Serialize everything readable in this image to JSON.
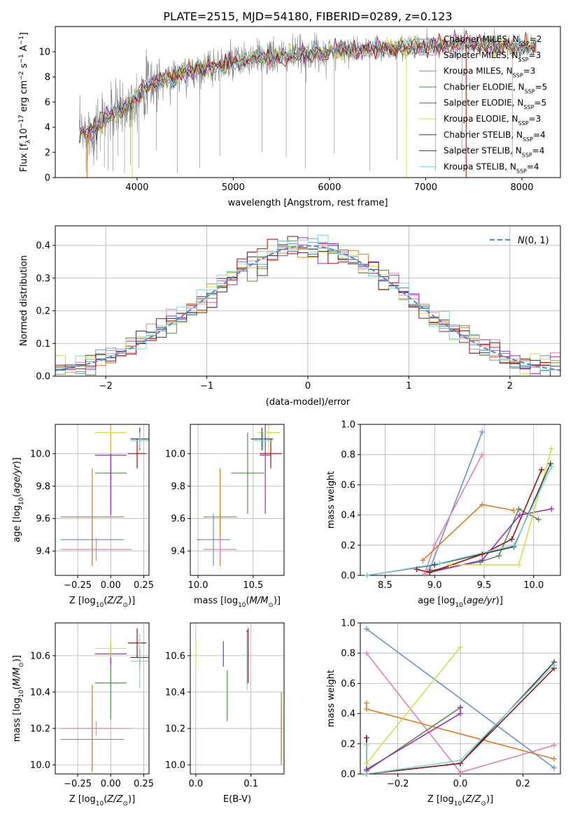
{
  "figure_title": "PLATE=2515, MJD=54180, FIBERID=0289, z=0.123",
  "colors": {
    "Chabrier MILES": "#6b8fd6",
    "Salpeter MILES": "#e27fb5",
    "Kroupa MILES": "#e07b20",
    "Chabrier ELODIE": "#5b8a55",
    "Salpeter ELODIE": "#9a2cc0",
    "Kroupa ELODIE": "#cfe24a",
    "Chabrier STELIB": "#3a3a3a",
    "Salpeter STELIB": "#a01010",
    "Kroupa STELIB": "#7fd8dc"
  },
  "chart_data": [
    {
      "id": "spectrum",
      "type": "line",
      "title": "PLATE=2515, MJD=54180, FIBERID=0289, z=0.123",
      "xlabel": "wavelength [Angstrom, rest frame]",
      "ylabel": "Flux [f_λ 10^-17 erg cm^-2 s^-1 A^-1]",
      "xlim": [
        3150,
        8400
      ],
      "ylim": [
        0,
        12
      ],
      "xticks": [
        4000,
        5000,
        6000,
        7000,
        8000
      ],
      "yticks": [
        0,
        2,
        4,
        6,
        8,
        10
      ],
      "legend_position": "top-right",
      "legend": [
        {
          "name": "Chabrier MILES",
          "nssp": "2"
        },
        {
          "name": "Salpeter MILES",
          "nssp": "3"
        },
        {
          "name": "Kroupa MILES",
          "nssp": "3"
        },
        {
          "name": "Chabrier ELODIE",
          "nssp": "5"
        },
        {
          "name": "Salpeter ELODIE",
          "nssp": "5"
        },
        {
          "name": "Kroupa ELODIE",
          "nssp": "3"
        },
        {
          "name": "Chabrier STELIB",
          "nssp": "4"
        },
        {
          "name": "Salpeter STELIB",
          "nssp": "4"
        },
        {
          "name": "Kroupa STELIB",
          "nssp": "4"
        }
      ],
      "continuum": [
        [
          3400,
          3.4
        ],
        [
          3550,
          3.9
        ],
        [
          3700,
          4.9
        ],
        [
          3850,
          5.4
        ],
        [
          3950,
          6.1
        ],
        [
          4050,
          7.0
        ],
        [
          4150,
          7.4
        ],
        [
          4300,
          7.8
        ],
        [
          4500,
          8.3
        ],
        [
          4700,
          8.7
        ],
        [
          4900,
          9.0
        ],
        [
          5100,
          9.3
        ],
        [
          5300,
          9.5
        ],
        [
          5500,
          9.6
        ],
        [
          5700,
          9.8
        ],
        [
          5900,
          9.9
        ],
        [
          6100,
          10.1
        ],
        [
          6300,
          10.1
        ],
        [
          6500,
          10.2
        ],
        [
          6700,
          10.3
        ],
        [
          6900,
          10.4
        ],
        [
          7100,
          10.5
        ],
        [
          7300,
          10.6
        ],
        [
          7500,
          10.5
        ],
        [
          7700,
          10.5
        ],
        [
          7900,
          10.4
        ],
        [
          8150,
          10.3
        ]
      ],
      "spikes": [
        3470,
        3520,
        3560,
        3620,
        3660,
        3700,
        3750,
        3800,
        3870,
        3930,
        4020,
        4200,
        4420,
        4650,
        4860,
        5300,
        5550,
        5750,
        6050,
        6420,
        6700,
        7100,
        7380,
        7900
      ]
    },
    {
      "id": "residuals",
      "type": "histogram",
      "xlabel": "(data-model)/error",
      "ylabel": "Normed distribution",
      "xlim": [
        -2.5,
        2.5
      ],
      "ylim": [
        0,
        0.46
      ],
      "xticks": [
        -2,
        -1,
        0,
        1,
        2
      ],
      "yticks": [
        0.0,
        0.1,
        0.2,
        0.3,
        0.4
      ],
      "reference_label": "N(0,1)",
      "bin_width": 0.1
    },
    {
      "id": "age_vs_Z",
      "type": "errorbar",
      "xlabel": "Z [log10(Z/Z⊙)]",
      "ylabel": "age [log10(age/yr)]",
      "xlim": [
        -0.42,
        0.29
      ],
      "ylim": [
        9.25,
        10.18
      ],
      "xticks": [
        -0.25,
        0.0,
        0.25
      ],
      "yticks": [
        9.4,
        9.6,
        9.8,
        10.0
      ],
      "points": [
        {
          "series": "Chabrier MILES",
          "x": -0.14,
          "xerr": 0.24,
          "y": 9.47,
          "yerr": 0.16
        },
        {
          "series": "Kroupa MILES",
          "x": -0.14,
          "xerr": 0.24,
          "y": 9.61,
          "yerr": 0.3
        },
        {
          "series": "Salpeter MILES",
          "x": -0.11,
          "xerr": 0.27,
          "y": 9.41,
          "yerr": 0.07
        },
        {
          "series": "Chabrier ELODIE",
          "x": 0.0,
          "xerr": 0.12,
          "y": 9.88,
          "yerr": 0.25
        },
        {
          "series": "Salpeter ELODIE",
          "x": 0.0,
          "xerr": 0.12,
          "y": 9.99,
          "yerr": 0.37
        },
        {
          "series": "Kroupa ELODIE",
          "x": 0.0,
          "xerr": 0.12,
          "y": 10.13,
          "yerr": 0.13
        },
        {
          "series": "Salpeter STELIB",
          "x": 0.2,
          "xerr": 0.07,
          "y": 10.0,
          "yerr": 0.09
        },
        {
          "series": "Chabrier STELIB",
          "x": 0.22,
          "xerr": 0.07,
          "y": 10.09,
          "yerr": 0.07
        },
        {
          "series": "Kroupa STELIB",
          "x": 0.22,
          "xerr": 0.07,
          "y": 10.08,
          "yerr": 0.05
        }
      ]
    },
    {
      "id": "age_vs_mass",
      "type": "errorbar",
      "xlabel": "mass [log10(M/M⊙)]",
      "ylabel": "",
      "xlim": [
        9.93,
        10.78
      ],
      "ylim": [
        9.25,
        10.18
      ],
      "xticks": [
        10.0,
        10.5
      ],
      "yticks": [
        9.4,
        9.6,
        9.8,
        10.0
      ],
      "points": [
        {
          "series": "Chabrier MILES",
          "x": 10.14,
          "xerr": 0.15,
          "y": 9.47,
          "yerr": 0.16
        },
        {
          "series": "Kroupa MILES",
          "x": 10.2,
          "xerr": 0.15,
          "y": 9.61,
          "yerr": 0.3
        },
        {
          "series": "Salpeter MILES",
          "x": 10.2,
          "xerr": 0.15,
          "y": 9.41,
          "yerr": 0.07
        },
        {
          "series": "Chabrier ELODIE",
          "x": 10.45,
          "xerr": 0.15,
          "y": 9.88,
          "yerr": 0.25
        },
        {
          "series": "Salpeter ELODIE",
          "x": 10.61,
          "xerr": 0.05,
          "y": 9.99,
          "yerr": 0.36
        },
        {
          "series": "Kroupa ELODIE",
          "x": 10.64,
          "xerr": 0.1,
          "y": 10.13,
          "yerr": 0.13
        },
        {
          "series": "Salpeter STELIB",
          "x": 10.66,
          "xerr": 0.1,
          "y": 10.0,
          "yerr": 0.09
        },
        {
          "series": "Chabrier STELIB",
          "x": 10.58,
          "xerr": 0.1,
          "y": 10.09,
          "yerr": 0.07
        },
        {
          "series": "Kroupa STELIB",
          "x": 10.59,
          "xerr": 0.09,
          "y": 10.08,
          "yerr": 0.05
        }
      ]
    },
    {
      "id": "weight_vs_age",
      "type": "line",
      "xlabel": "age [log10(age/yr)]",
      "ylabel": "mass weight",
      "xlim": [
        8.25,
        10.27
      ],
      "ylim": [
        0,
        1.0
      ],
      "xticks": [
        8.5,
        9.0,
        9.5,
        10.0
      ],
      "yticks": [
        0.0,
        0.2,
        0.4,
        0.6,
        0.8,
        1.0
      ],
      "series": [
        {
          "name": "Chabrier MILES",
          "points": [
            [
              8.95,
              0.04
            ],
            [
              9.48,
              0.95
            ]
          ]
        },
        {
          "name": "Salpeter MILES",
          "points": [
            [
              8.9,
              0.01
            ],
            [
              9.0,
              0.2
            ],
            [
              9.48,
              0.8
            ]
          ]
        },
        {
          "name": "Kroupa MILES",
          "points": [
            [
              8.88,
              0.1
            ],
            [
              9.48,
              0.47
            ],
            [
              9.8,
              0.43
            ]
          ]
        },
        {
          "name": "Chabrier ELODIE",
          "points": [
            [
              8.95,
              0.03
            ],
            [
              9.46,
              0.09
            ],
            [
              9.65,
              0.13
            ],
            [
              9.85,
              0.44
            ],
            [
              10.05,
              0.37
            ]
          ]
        },
        {
          "name": "Salpeter ELODIE",
          "points": [
            [
              8.95,
              0.02
            ],
            [
              9.48,
              0.1
            ],
            [
              9.86,
              0.4
            ],
            [
              10.18,
              0.44
            ]
          ]
        },
        {
          "name": "Kroupa ELODIE",
          "points": [
            [
              9.15,
              0.07
            ],
            [
              9.85,
              0.07
            ],
            [
              10.18,
              0.84
            ]
          ]
        },
        {
          "name": "Chabrier STELIB",
          "points": [
            [
              8.32,
              0.0
            ],
            [
              9.0,
              0.07
            ],
            [
              9.8,
              0.19
            ],
            [
              10.17,
              0.74
            ]
          ]
        },
        {
          "name": "Salpeter STELIB",
          "points": [
            [
              8.82,
              0.04
            ],
            [
              8.95,
              0.02
            ],
            [
              9.48,
              0.14
            ],
            [
              9.78,
              0.24
            ],
            [
              10.08,
              0.7
            ]
          ]
        },
        {
          "name": "Kroupa STELIB",
          "points": [
            [
              8.32,
              0.0
            ],
            [
              9.05,
              0.08
            ],
            [
              9.8,
              0.2
            ],
            [
              10.18,
              0.72
            ]
          ]
        }
      ]
    },
    {
      "id": "mass_vs_Z",
      "type": "errorbar",
      "xlabel": "Z [log10(Z/Z⊙)]",
      "ylabel": "mass [log10(M/M⊙)]",
      "xlim": [
        -0.42,
        0.29
      ],
      "ylim": [
        9.95,
        10.78
      ],
      "xticks": [
        -0.25,
        0.0,
        0.25
      ],
      "yticks": [
        10.0,
        10.2,
        10.4,
        10.6
      ],
      "points": [
        {
          "series": "Chabrier MILES",
          "x": -0.14,
          "xerr": 0.24,
          "y": 10.14,
          "yerr": 0.17
        },
        {
          "series": "Kroupa MILES",
          "x": -0.14,
          "xerr": 0.24,
          "y": 10.2,
          "yerr": 0.24
        },
        {
          "series": "Salpeter MILES",
          "x": -0.11,
          "xerr": 0.27,
          "y": 10.2,
          "yerr": 0.04
        },
        {
          "series": "Chabrier ELODIE",
          "x": 0.0,
          "xerr": 0.12,
          "y": 10.45,
          "yerr": 0.2
        },
        {
          "series": "Salpeter ELODIE",
          "x": 0.0,
          "xerr": 0.12,
          "y": 10.61,
          "yerr": 0.06
        },
        {
          "series": "Kroupa ELODIE",
          "x": 0.0,
          "xerr": 0.12,
          "y": 10.64,
          "yerr": 0.05
        },
        {
          "series": "Salpeter STELIB",
          "x": 0.2,
          "xerr": 0.07,
          "y": 10.67,
          "yerr": 0.08
        },
        {
          "series": "Chabrier STELIB",
          "x": 0.22,
          "xerr": 0.07,
          "y": 10.59,
          "yerr": 0.05
        },
        {
          "series": "Kroupa STELIB",
          "x": 0.22,
          "xerr": 0.07,
          "y": 10.57,
          "yerr": 0.15
        }
      ]
    },
    {
      "id": "mass_vs_ebv",
      "type": "errorbar",
      "xlabel": "E(B-V)",
      "ylabel": "",
      "xlim": [
        -0.01,
        0.16
      ],
      "ylim": [
        9.95,
        10.78
      ],
      "xticks": [
        0.0,
        0.1
      ],
      "yticks": [
        10.0,
        10.2,
        10.4,
        10.6
      ],
      "points": [
        {
          "series": "Kroupa ELODIE",
          "x": 0.0,
          "y": 10.61,
          "yerr": 0.08
        },
        {
          "series": "Salpeter ELODIE",
          "x": 0.05,
          "y": 10.61,
          "yerr": 0.07
        },
        {
          "series": "Chabrier ELODIE",
          "x": 0.057,
          "y": 10.38,
          "yerr": 0.14
        },
        {
          "series": "Chabrier STELIB",
          "x": 0.093,
          "y": 10.59,
          "yerr": 0.15
        },
        {
          "series": "Kroupa STELIB",
          "x": 0.093,
          "y": 10.57,
          "yerr": 0.16
        },
        {
          "series": "Salpeter STELIB",
          "x": 0.095,
          "y": 10.6,
          "yerr": 0.15
        },
        {
          "series": "Chabrier MILES",
          "x": 0.155,
          "y": 10.14,
          "yerr": 0.12
        },
        {
          "series": "Salpeter MILES",
          "x": 0.155,
          "y": 10.2,
          "yerr": 0.16
        },
        {
          "series": "Kroupa MILES",
          "x": 0.155,
          "y": 10.2,
          "yerr": 0.2
        }
      ]
    },
    {
      "id": "weight_vs_Z",
      "type": "line",
      "xlabel": "Z [log10(Z/Z⊙)]",
      "ylabel": "mass weight",
      "xlim": [
        -0.32,
        0.32
      ],
      "ylim": [
        0,
        1.0
      ],
      "xticks": [
        -0.2,
        0.0,
        0.2
      ],
      "yticks": [
        0.0,
        0.2,
        0.4,
        0.6,
        0.8,
        1.0
      ],
      "series": [
        {
          "name": "Chabrier MILES",
          "points": [
            [
              -0.3,
              0.96
            ],
            [
              0.3,
              0.04
            ]
          ]
        },
        {
          "name": "Salpeter MILES",
          "points": [
            [
              -0.3,
              0.8
            ],
            [
              0.0,
              0.01
            ],
            [
              0.3,
              0.19
            ]
          ]
        },
        {
          "name": "Kroupa MILES",
          "points": [
            [
              -0.3,
              0.47
            ],
            [
              -0.3,
              0.43
            ],
            [
              0.3,
              0.1
            ]
          ]
        },
        {
          "name": "Chabrier ELODIE",
          "points": [
            [
              -0.3,
              0.02
            ],
            [
              0.0,
              0.44
            ]
          ]
        },
        {
          "name": "Salpeter ELODIE",
          "points": [
            [
              -0.3,
              0.03
            ],
            [
              0.0,
              0.4
            ],
            [
              0.0,
              0.44
            ]
          ]
        },
        {
          "name": "Kroupa ELODIE",
          "points": [
            [
              -0.3,
              0.07
            ],
            [
              0.0,
              0.84
            ]
          ]
        },
        {
          "name": "Chabrier STELIB",
          "points": [
            [
              -0.3,
              0.24
            ],
            [
              -0.3,
              0.0
            ],
            [
              0.0,
              0.07
            ],
            [
              0.3,
              0.74
            ]
          ]
        },
        {
          "name": "Salpeter STELIB",
          "points": [
            [
              -0.3,
              0.24
            ],
            [
              -0.3,
              0.0
            ],
            [
              0.0,
              0.07
            ],
            [
              0.3,
              0.7
            ]
          ]
        },
        {
          "name": "Kroupa STELIB",
          "points": [
            [
              -0.3,
              0.19
            ],
            [
              -0.3,
              0.0
            ],
            [
              0.0,
              0.09
            ],
            [
              0.3,
              0.72
            ]
          ]
        }
      ]
    }
  ]
}
